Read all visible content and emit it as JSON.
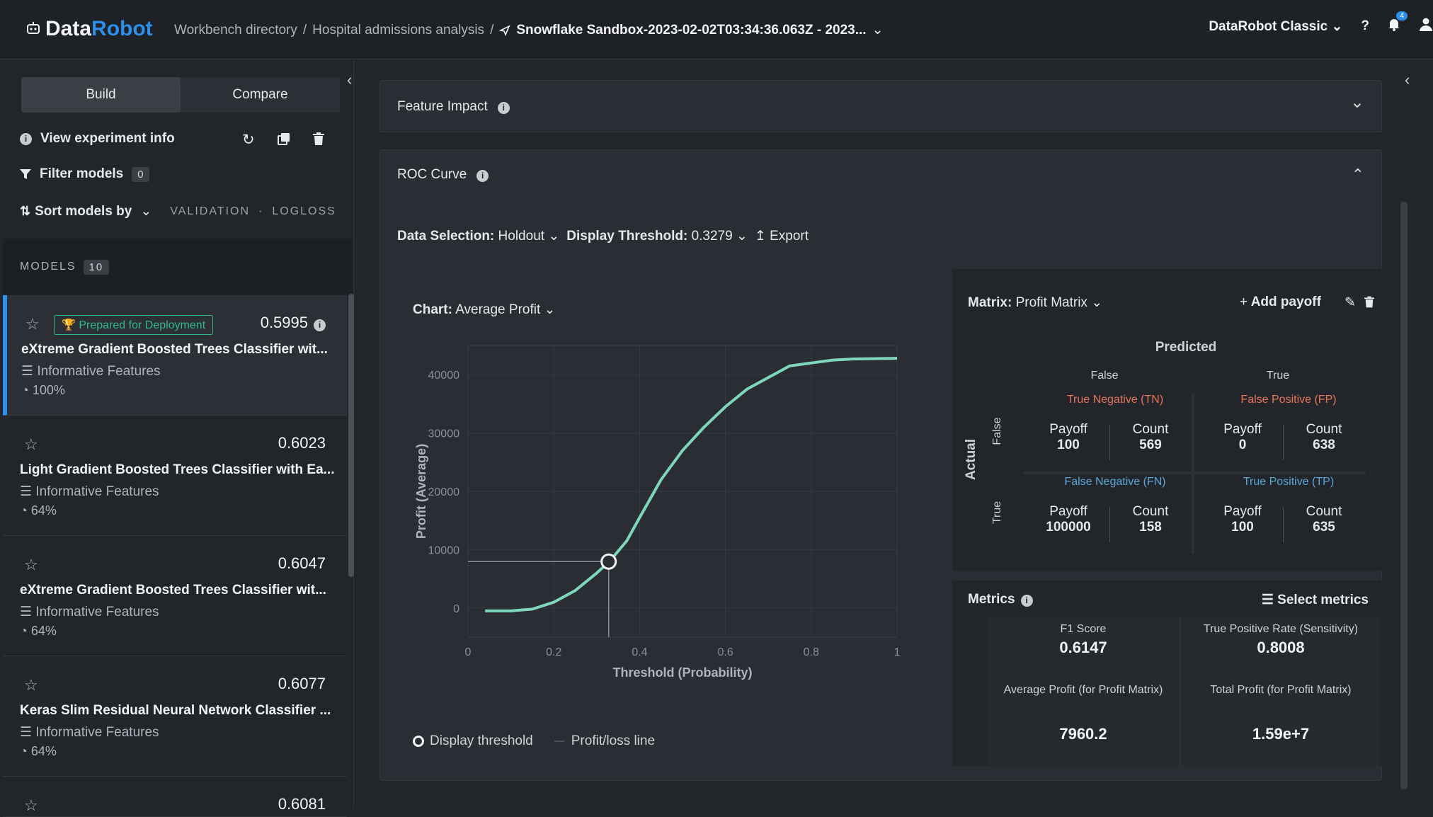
{
  "header": {
    "logo_data": "Data",
    "logo_robot": "Robot",
    "breadcrumb_1": "Workbench directory",
    "sep": "/",
    "breadcrumb_2": "Hospital admissions analysis",
    "breadcrumb_3": "Snowflake Sandbox-2023-02-02T03:34:36.063Z - 2023...",
    "classic": "DataRobot Classic",
    "help": "?",
    "notif_count": "4"
  },
  "sidebar": {
    "tab_build": "Build",
    "tab_compare": "Compare",
    "view_info": "View experiment info",
    "filter_label": "Filter models",
    "filter_count": "0",
    "sort_label": "Sort models by",
    "sort_sub_1": "VALIDATION",
    "sort_dot": "·",
    "sort_sub_2": "LOGLOSS",
    "models_label": "MODELS",
    "models_count": "10",
    "models": [
      {
        "badge": "Prepared for Deployment",
        "score": "0.5995",
        "name": "eXtreme Gradient Boosted Trees Classifier wit...",
        "features": "Informative Features",
        "pct": "100%"
      },
      {
        "score": "0.6023",
        "name": "Light Gradient Boosted Trees Classifier with Ea...",
        "features": "Informative Features",
        "pct": "64%"
      },
      {
        "score": "0.6047",
        "name": "eXtreme Gradient Boosted Trees Classifier wit...",
        "features": "Informative Features",
        "pct": "64%"
      },
      {
        "score": "0.6077",
        "name": "Keras Slim Residual Neural Network Classifier ...",
        "features": "Informative Features",
        "pct": "64%"
      }
    ],
    "partial_score": "0.6081"
  },
  "feature_impact": {
    "title": "Feature Impact"
  },
  "roc": {
    "title": "ROC Curve",
    "data_selection_label": "Data Selection:",
    "data_selection_value": "Holdout",
    "threshold_label": "Display Threshold:",
    "threshold_value": "0.3279",
    "export": "Export",
    "chart_label": "Chart:",
    "chart_value": "Average Profit",
    "legend_threshold": "Display threshold",
    "legend_line": "Profit/loss line"
  },
  "matrix": {
    "label": "Matrix:",
    "value": "Profit Matrix",
    "add_payoff": "Add payoff",
    "predicted": "Predicted",
    "actual": "Actual",
    "col_false": "False",
    "col_true": "True",
    "row_false": "False",
    "row_true": "True",
    "tn": "True Negative (TN)",
    "fp": "False Positive (FP)",
    "fn": "False Negative (FN)",
    "tp": "True Positive (TP)",
    "payoff_label": "Payoff",
    "count_label": "Count",
    "tn_payoff": "100",
    "tn_count": "569",
    "fp_payoff": "0",
    "fp_count": "638",
    "fn_payoff": "100000",
    "fn_count": "158",
    "tp_payoff": "100",
    "tp_count": "635"
  },
  "metrics": {
    "title": "Metrics",
    "select": "Select metrics",
    "f1_label": "F1 Score",
    "f1_value": "0.6147",
    "tpr_label": "True Positive Rate (Sensitivity)",
    "tpr_value": "0.8008",
    "avg_label": "Average Profit (for Profit Matrix)",
    "avg_value": "7960.2",
    "total_label": "Total Profit (for Profit Matrix)",
    "total_value": "1.59e+7"
  },
  "chart_data": {
    "type": "line",
    "xlabel": "Threshold (Probability)",
    "ylabel": "Profit (Average)",
    "xlim": [
      0,
      1
    ],
    "ylim": [
      -5000,
      45000
    ],
    "xticks": [
      "0",
      "0.2",
      "0.4",
      "0.6",
      "0.8",
      "1"
    ],
    "yticks": [
      "0",
      "10000",
      "20000",
      "30000",
      "40000"
    ],
    "line_color": "#7fd6bf",
    "x": [
      0.04,
      0.1,
      0.15,
      0.2,
      0.25,
      0.3,
      0.33,
      0.37,
      0.4,
      0.45,
      0.5,
      0.55,
      0.6,
      0.65,
      0.7,
      0.75,
      0.8,
      0.85,
      0.9,
      1.0
    ],
    "y": [
      -500,
      -500,
      -200,
      1000,
      3000,
      6000,
      8000,
      11500,
      15500,
      22000,
      27000,
      31000,
      34500,
      37500,
      39500,
      41500,
      42000,
      42500,
      42700,
      42800
    ],
    "threshold": {
      "x": 0.3279,
      "y": 7960.2
    }
  }
}
